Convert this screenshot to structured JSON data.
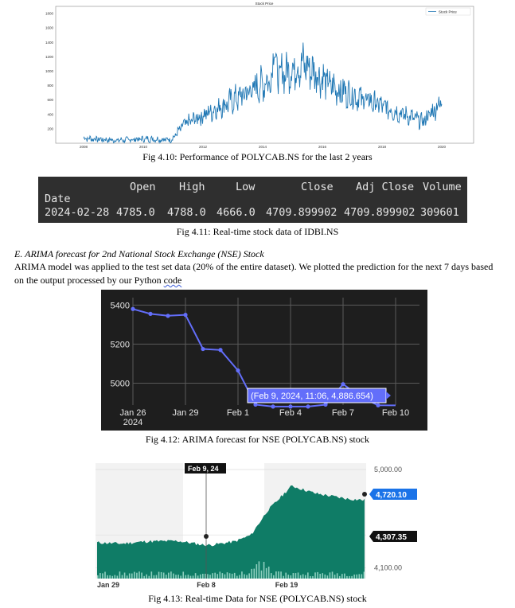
{
  "fig410": {
    "title": "Stock Price",
    "legend": "Stock Price",
    "caption": "Fig 4.10: Performance of POLYCAB.NS for the last 2 years"
  },
  "fig411": {
    "headers": [
      "Open",
      "High",
      "Low",
      "Close",
      "Adj Close",
      "Volume"
    ],
    "index_name": "Date",
    "row": [
      "2024-02-28",
      "4785.0",
      "4788.0",
      "4666.0",
      "4709.899902",
      "4709.899902",
      "309601"
    ],
    "caption": "Fig 4.11: Real-time stock data of IDBI.NS"
  },
  "section": {
    "title": "E.    ARIMA forecast for 2nd National Stock Exchange (NSE) Stock",
    "body_main": "ARIMA model was applied to the test set data (20% of the entire dataset). We plotted the prediction for the next 7 days based on the output processed by our Python ",
    "body_word": "code"
  },
  "fig412": {
    "caption": "Fig 4.12: ARIMA forecast for NSE (POLYCAB.NS) stock",
    "tooltip": "(Feb 9, 2024, 11:06, 4,886.654)",
    "colors": {
      "background": "#1e1e1e",
      "line": "#636efa",
      "tooltip_bg": "#636efa"
    }
  },
  "fig413": {
    "caption": "Fig 4.13: Real-time Data for NSE (POLYCAB.NS) stock",
    "hover_date": "Feb 9, 24",
    "last_price": "4,720.10",
    "hover_price": "4,307.35",
    "colors": {
      "area": "#0f7c66",
      "last_badge": "#1a73e8",
      "hover_badge": "#111111"
    }
  },
  "chart_data": [
    {
      "type": "line",
      "title": "Stock Price",
      "legend": [
        "Stock Price"
      ],
      "x": [
        2018.5,
        2019.0,
        2019.5,
        2019.9,
        2020.1,
        2020.5,
        2021.0,
        2021.5,
        2022.0,
        2022.5,
        2023.0,
        2023.5,
        2023.9,
        2024.2
      ],
      "y": [
        70,
        40,
        60,
        50,
        260,
        430,
        650,
        900,
        1100,
        760,
        600,
        430,
        300,
        580
      ],
      "xticks": [
        "2008",
        "2010",
        "2012",
        "2014",
        "2016",
        "2018",
        "2020"
      ],
      "yticks": [
        "200",
        "400",
        "600",
        "800",
        "1000",
        "1200",
        "1400",
        "1600",
        "1800"
      ],
      "grid": true,
      "legend_position": "top-right"
    },
    {
      "type": "line",
      "x": [
        "2024-01-26",
        "2024-01-27",
        "2024-01-28",
        "2024-01-29",
        "2024-01-30",
        "2024-01-31",
        "2024-02-01",
        "2024-02-02",
        "2024-02-03",
        "2024-02-04",
        "2024-02-05",
        "2024-02-06",
        "2024-02-07",
        "2024-02-08",
        "2024-02-09",
        "2024-02-10"
      ],
      "y": [
        5380,
        5355,
        5345,
        5350,
        5175,
        5170,
        5065,
        4890,
        4880,
        4880,
        4880,
        4890,
        4995,
        4930,
        4886.654,
        4886
      ],
      "xticks": [
        "Jan 26\n2024",
        "Jan 29",
        "Feb 1",
        "Feb 4",
        "Feb 7",
        "Feb 10"
      ],
      "yticks": [
        "5000",
        "5200",
        "5400"
      ],
      "ylim": [
        4900,
        5430
      ],
      "grid": true
    },
    {
      "type": "area",
      "x": [
        "2024-01-26",
        "2024-01-29",
        "2024-02-01",
        "2024-02-05",
        "2024-02-08",
        "2024-02-09",
        "2024-02-12",
        "2024-02-14",
        "2024-02-16",
        "2024-02-19",
        "2024-02-22",
        "2024-02-26",
        "2024-02-28"
      ],
      "y": [
        4330,
        4320,
        4340,
        4345,
        4310,
        4307.35,
        4340,
        4400,
        4620,
        4850,
        4780,
        4730,
        4720.1
      ],
      "xticks": [
        "Jan 29",
        "Feb 8",
        "Feb 19"
      ],
      "yticks": [
        "4,100.00",
        "4,400.00",
        "5,000.00"
      ],
      "ylim": [
        4000,
        5000
      ]
    }
  ]
}
